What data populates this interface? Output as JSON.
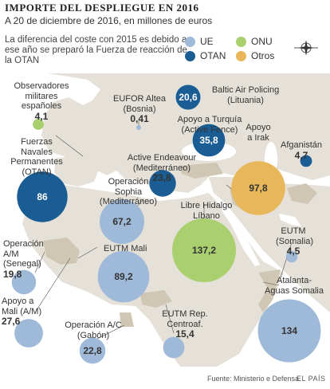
{
  "header": {
    "title": "IMPORTE DEL DESPLIEGUE EN 2016",
    "subtitle": "A 20 de diciembre de 2016, en millones de euros",
    "note": "La diferencia del coste con 2015 es debido a ese año se preparó la Fuerza de reacción de la OTAN"
  },
  "legend": [
    {
      "label": "UE",
      "color": "#9fb9d9"
    },
    {
      "label": "ONU",
      "color": "#a9cf6e"
    },
    {
      "label": "OTAN",
      "color": "#1a5d94"
    },
    {
      "label": "Otros",
      "color": "#e8b75a"
    }
  ],
  "compass_icon": "compass-rose-icon",
  "missions": [
    {
      "name": "Observadores militares españoles",
      "value": "4,1",
      "org": "ONU",
      "value_num": 4.1
    },
    {
      "name": "EUFOR Altea (Bosnia)",
      "value": "0,41",
      "org": "UE",
      "value_num": 0.41
    },
    {
      "name": "Baltic Air Policing (Lituania)",
      "value": "20,6",
      "org": "OTAN",
      "value_num": 20.6
    },
    {
      "name": "Fuerzas Navales Permanentes (OTAN)",
      "value": "86",
      "org": "OTAN",
      "value_num": 86
    },
    {
      "name": "Apoyo a Turquía (Active Fence)",
      "value": "35,8",
      "org": "OTAN",
      "value_num": 35.8
    },
    {
      "name": "Apoyo a Irak",
      "value": "97,8",
      "org": "Otros",
      "value_num": 97.8
    },
    {
      "name": "Afganistán",
      "value": "4,7",
      "org": "OTAN",
      "value_num": 4.7
    },
    {
      "name": "Active Endeavour (Mediterráneo)",
      "value": "23,8",
      "org": "OTAN",
      "value_num": 23.8
    },
    {
      "name": "Operación Sophia (Mediterráneo)",
      "value": "67,2",
      "org": "UE",
      "value_num": 67.2
    },
    {
      "name": "Libre Hidalgo Líbano",
      "value": "137,2",
      "org": "ONU",
      "value_num": 137.2
    },
    {
      "name": "EUTM (Somalia)",
      "value": "4,5",
      "org": "UE",
      "value_num": 4.5
    },
    {
      "name": "Operación A/M (Senegal)",
      "value": "19,8",
      "org": "UE",
      "value_num": 19.8
    },
    {
      "name": "EUTM Mali",
      "value": "89,2",
      "org": "UE",
      "value_num": 89.2
    },
    {
      "name": "Apoyo a Mali (A/M)",
      "value": "27,6",
      "org": "UE",
      "value_num": 27.6
    },
    {
      "name": "Atalanta-Aguas Somalia",
      "value": "134",
      "org": "UE",
      "value_num": 134
    },
    {
      "name": "Operación A/C (Gabón)",
      "value": "22,8",
      "org": "UE",
      "value_num": 22.8
    },
    {
      "name": "EUTM Rep. Centroaf.",
      "value": "15,4",
      "org": "UE",
      "value_num": 15.4
    }
  ],
  "footer": {
    "source": "Fuente: Ministerio e Defensa.",
    "brand": "EL PAÍS"
  }
}
